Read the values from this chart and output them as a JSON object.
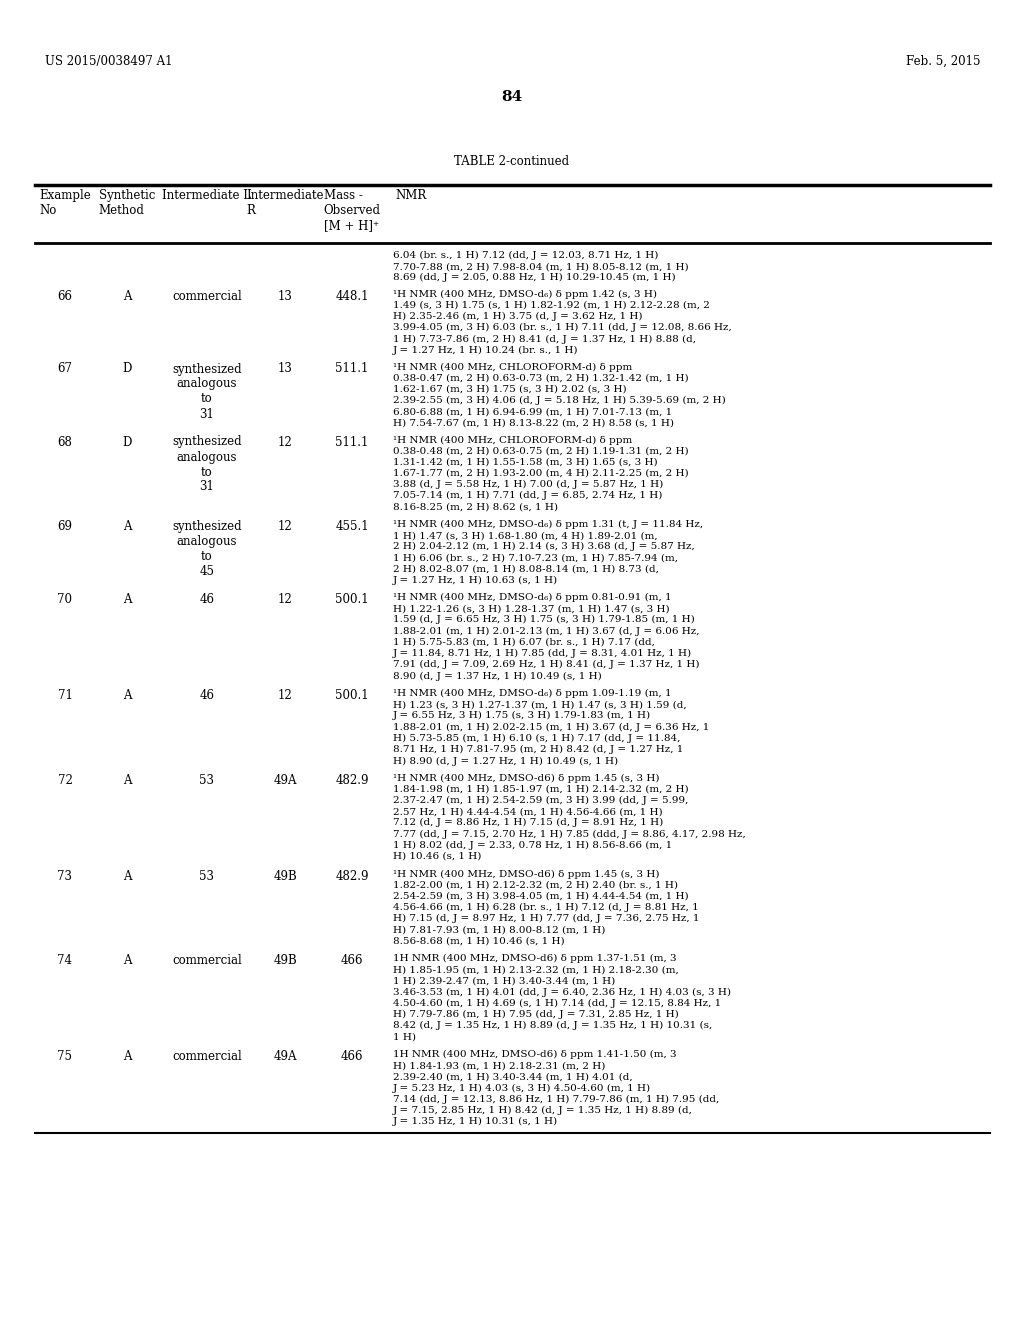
{
  "header_left": "US 2015/0038497 A1",
  "header_right": "Feb. 5, 2015",
  "page_number": "84",
  "table_title": "TABLE 2-continued",
  "rows": [
    {
      "example": "",
      "method": "",
      "int_l": "",
      "int_r": "",
      "mass": "",
      "nmr": "6.04 (br. s., 1 H) 7.12 (dd, J = 12.03, 8.71 Hz, 1 H)\n7.70-7.88 (m, 2 H) 7.98-8.04 (m, 1 H) 8.05-8.12 (m, 1 H)\n8.69 (dd, J = 2.05, 0.88 Hz, 1 H) 10.29-10.45 (m, 1 H)"
    },
    {
      "example": "66",
      "method": "A",
      "int_l": "commercial",
      "int_r": "13",
      "mass": "448.1",
      "nmr": "¹H NMR (400 MHz, DMSO-d₆) δ ppm 1.42 (s, 3 H)\n1.49 (s, 3 H) 1.75 (s, 1 H) 1.82-1.92 (m, 1 H) 2.12-2.28 (m, 2\nH) 2.35-2.46 (m, 1 H) 3.75 (d, J = 3.62 Hz, 1 H)\n3.99-4.05 (m, 3 H) 6.03 (br. s., 1 H) 7.11 (dd, J = 12.08, 8.66 Hz,\n1 H) 7.73-7.86 (m, 2 H) 8.41 (d, J = 1.37 Hz, 1 H) 8.88 (d,\nJ = 1.27 Hz, 1 H) 10.24 (br. s., 1 H)"
    },
    {
      "example": "67",
      "method": "D",
      "int_l": "synthesized\nanalogous\nto\n31",
      "int_r": "13",
      "mass": "511.1",
      "nmr": "¹H NMR (400 MHz, CHLOROFORM-d) δ ppm\n0.38-0.47 (m, 2 H) 0.63-0.73 (m, 2 H) 1.32-1.42 (m, 1 H)\n1.62-1.67 (m, 3 H) 1.75 (s, 3 H) 2.02 (s, 3 H)\n2.39-2.55 (m, 3 H) 4.06 (d, J = 5.18 Hz, 1 H) 5.39-5.69 (m, 2 H)\n6.80-6.88 (m, 1 H) 6.94-6.99 (m, 1 H) 7.01-7.13 (m, 1\nH) 7.54-7.67 (m, 1 H) 8.13-8.22 (m, 2 H) 8.58 (s, 1 H)"
    },
    {
      "example": "68",
      "method": "D",
      "int_l": "synthesized\nanalogous\nto\n31",
      "int_r": "12",
      "mass": "511.1",
      "nmr": "¹H NMR (400 MHz, CHLOROFORM-d) δ ppm\n0.38-0.48 (m, 2 H) 0.63-0.75 (m, 2 H) 1.19-1.31 (m, 2 H)\n1.31-1.42 (m, 1 H) 1.55-1.58 (m, 3 H) 1.65 (s, 3 H)\n1.67-1.77 (m, 2 H) 1.93-2.00 (m, 4 H) 2.11-2.25 (m, 2 H)\n3.88 (d, J = 5.58 Hz, 1 H) 7.00 (d, J = 5.87 Hz, 1 H)\n7.05-7.14 (m, 1 H) 7.71 (dd, J = 6.85, 2.74 Hz, 1 H)\n8.16-8.25 (m, 2 H) 8.62 (s, 1 H)"
    },
    {
      "example": "69",
      "method": "A",
      "int_l": "synthesized\nanalogous\nto\n45",
      "int_r": "12",
      "mass": "455.1",
      "nmr": "¹H NMR (400 MHz, DMSO-d₆) δ ppm 1.31 (t, J = 11.84 Hz,\n1 H) 1.47 (s, 3 H) 1.68-1.80 (m, 4 H) 1.89-2.01 (m,\n2 H) 2.04-2.12 (m, 1 H) 2.14 (s, 3 H) 3.68 (d, J = 5.87 Hz,\n1 H) 6.06 (br. s., 2 H) 7.10-7.23 (m, 1 H) 7.85-7.94 (m,\n2 H) 8.02-8.07 (m, 1 H) 8.08-8.14 (m, 1 H) 8.73 (d,\nJ = 1.27 Hz, 1 H) 10.63 (s, 1 H)"
    },
    {
      "example": "70",
      "method": "A",
      "int_l": "46",
      "int_r": "12",
      "mass": "500.1",
      "nmr": "¹H NMR (400 MHz, DMSO-d₆) δ ppm 0.81-0.91 (m, 1\nH) 1.22-1.26 (s, 3 H) 1.28-1.37 (m, 1 H) 1.47 (s, 3 H)\n1.59 (d, J = 6.65 Hz, 3 H) 1.75 (s, 3 H) 1.79-1.85 (m, 1 H)\n1.88-2.01 (m, 1 H) 2.01-2.13 (m, 1 H) 3.67 (d, J = 6.06 Hz,\n1 H) 5.75-5.83 (m, 1 H) 6.07 (br. s., 1 H) 7.17 (dd,\nJ = 11.84, 8.71 Hz, 1 H) 7.85 (dd, J = 8.31, 4.01 Hz, 1 H)\n7.91 (dd, J = 7.09, 2.69 Hz, 1 H) 8.41 (d, J = 1.37 Hz, 1 H)\n8.90 (d, J = 1.37 Hz, 1 H) 10.49 (s, 1 H)"
    },
    {
      "example": "71",
      "method": "A",
      "int_l": "46",
      "int_r": "12",
      "mass": "500.1",
      "nmr": "¹H NMR (400 MHz, DMSO-d₆) δ ppm 1.09-1.19 (m, 1\nH) 1.23 (s, 3 H) 1.27-1.37 (m, 1 H) 1.47 (s, 3 H) 1.59 (d,\nJ = 6.55 Hz, 3 H) 1.75 (s, 3 H) 1.79-1.83 (m, 1 H)\n1.88-2.01 (m, 1 H) 2.02-2.15 (m, 1 H) 3.67 (d, J = 6.36 Hz, 1\nH) 5.73-5.85 (m, 1 H) 6.10 (s, 1 H) 7.17 (dd, J = 11.84,\n8.71 Hz, 1 H) 7.81-7.95 (m, 2 H) 8.42 (d, J = 1.27 Hz, 1\nH) 8.90 (d, J = 1.27 Hz, 1 H) 10.49 (s, 1 H)"
    },
    {
      "example": "72",
      "method": "A",
      "int_l": "53",
      "int_r": "49A",
      "mass": "482.9",
      "nmr": "¹H NMR (400 MHz, DMSO-d6) δ ppm 1.45 (s, 3 H)\n1.84-1.98 (m, 1 H) 1.85-1.97 (m, 1 H) 2.14-2.32 (m, 2 H)\n2.37-2.47 (m, 1 H) 2.54-2.59 (m, 3 H) 3.99 (dd, J = 5.99,\n2.57 Hz, 1 H) 4.44-4.54 (m, 1 H) 4.56-4.66 (m, 1 H)\n7.12 (d, J = 8.86 Hz, 1 H) 7.15 (d, J = 8.91 Hz, 1 H)\n7.77 (dd, J = 7.15, 2.70 Hz, 1 H) 7.85 (ddd, J = 8.86, 4.17, 2.98 Hz,\n1 H) 8.02 (dd, J = 2.33, 0.78 Hz, 1 H) 8.56-8.66 (m, 1\nH) 10.46 (s, 1 H)"
    },
    {
      "example": "73",
      "method": "A",
      "int_l": "53",
      "int_r": "49B",
      "mass": "482.9",
      "nmr": "¹H NMR (400 MHz, DMSO-d6) δ ppm 1.45 (s, 3 H)\n1.82-2.00 (m, 1 H) 2.12-2.32 (m, 2 H) 2.40 (br. s., 1 H)\n2.54-2.59 (m, 3 H) 3.98-4.05 (m, 1 H) 4.44-4.54 (m, 1 H)\n4.56-4.66 (m, 1 H) 6.28 (br. s., 1 H) 7.12 (d, J = 8.81 Hz, 1\nH) 7.15 (d, J = 8.97 Hz, 1 H) 7.77 (dd, J = 7.36, 2.75 Hz, 1\nH) 7.81-7.93 (m, 1 H) 8.00-8.12 (m, 1 H)\n8.56-8.68 (m, 1 H) 10.46 (s, 1 H)"
    },
    {
      "example": "74",
      "method": "A",
      "int_l": "commercial",
      "int_r": "49B",
      "mass": "466",
      "nmr": "1H NMR (400 MHz, DMSO-d6) δ ppm 1.37-1.51 (m, 3\nH) 1.85-1.95 (m, 1 H) 2.13-2.32 (m, 1 H) 2.18-2.30 (m,\n1 H) 2.39-2.47 (m, 1 H) 3.40-3.44 (m, 1 H)\n3.46-3.53 (m, 1 H) 4.01 (dd, J = 6.40, 2.36 Hz, 1 H) 4.03 (s, 3 H)\n4.50-4.60 (m, 1 H) 4.69 (s, 1 H) 7.14 (dd, J = 12.15, 8.84 Hz, 1\nH) 7.79-7.86 (m, 1 H) 7.95 (dd, J = 7.31, 2.85 Hz, 1 H)\n8.42 (d, J = 1.35 Hz, 1 H) 8.89 (d, J = 1.35 Hz, 1 H) 10.31 (s,\n1 H)"
    },
    {
      "example": "75",
      "method": "A",
      "int_l": "commercial",
      "int_r": "49A",
      "mass": "466",
      "nmr": "1H NMR (400 MHz, DMSO-d6) δ ppm 1.41-1.50 (m, 3\nH) 1.84-1.93 (m, 1 H) 2.18-2.31 (m, 2 H)\n2.39-2.40 (m, 1 H) 3.40-3.44 (m, 1 H) 4.01 (d,\nJ = 5.23 Hz, 1 H) 4.03 (s, 3 H) 4.50-4.60 (m, 1 H)\n7.14 (dd, J = 12.13, 8.86 Hz, 1 H) 7.79-7.86 (m, 1 H) 7.95 (dd,\nJ = 7.15, 2.85 Hz, 1 H) 8.42 (d, J = 1.35 Hz, 1 H) 8.89 (d,\nJ = 1.35 Hz, 1 H) 10.31 (s, 1 H)"
    }
  ]
}
